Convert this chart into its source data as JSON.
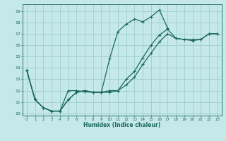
{
  "xlabel": "Humidex (Indice chaleur)",
  "background_color": "#c5e8e8",
  "grid_color": "#9ecece",
  "line_color": "#1a6860",
  "xlim": [
    -0.5,
    23.5
  ],
  "ylim": [
    9.8,
    19.6
  ],
  "xticks": [
    0,
    1,
    2,
    3,
    4,
    5,
    6,
    7,
    8,
    9,
    10,
    11,
    12,
    13,
    14,
    15,
    16,
    17,
    18,
    19,
    20,
    21,
    22,
    23
  ],
  "yticks": [
    10,
    11,
    12,
    13,
    14,
    15,
    16,
    17,
    18,
    19
  ],
  "line1_x": [
    0,
    1,
    2,
    3,
    4,
    5,
    6,
    7,
    8,
    9,
    10,
    11,
    12,
    13,
    14,
    15,
    16,
    17
  ],
  "line1_y": [
    13.8,
    11.2,
    10.5,
    10.2,
    10.2,
    12.0,
    12.0,
    11.9,
    11.85,
    11.85,
    14.8,
    17.2,
    17.85,
    18.3,
    18.05,
    18.5,
    19.1,
    17.5
  ],
  "line2_x": [
    0,
    1,
    2,
    3,
    4,
    5,
    6,
    7,
    8,
    9,
    10,
    11,
    12,
    13,
    14,
    15,
    16,
    17,
    18,
    19,
    20,
    21,
    22,
    23
  ],
  "line2_y": [
    13.8,
    11.2,
    10.5,
    10.2,
    10.2,
    11.2,
    11.85,
    12.0,
    11.85,
    11.85,
    12.0,
    12.0,
    13.0,
    13.7,
    14.9,
    16.0,
    16.9,
    17.4,
    16.6,
    16.5,
    16.5,
    16.5,
    17.0,
    17.0
  ],
  "line3_x": [
    0,
    1,
    2,
    3,
    4,
    5,
    6,
    7,
    8,
    9,
    10,
    11,
    12,
    13,
    14,
    15,
    16,
    17,
    18,
    19,
    20,
    21,
    22,
    23
  ],
  "line3_y": [
    13.8,
    11.2,
    10.5,
    10.2,
    10.2,
    11.2,
    11.85,
    12.0,
    11.85,
    11.85,
    11.85,
    12.0,
    12.5,
    13.2,
    14.3,
    15.3,
    16.3,
    17.0,
    16.6,
    16.5,
    16.4,
    16.5,
    17.0,
    17.0
  ]
}
